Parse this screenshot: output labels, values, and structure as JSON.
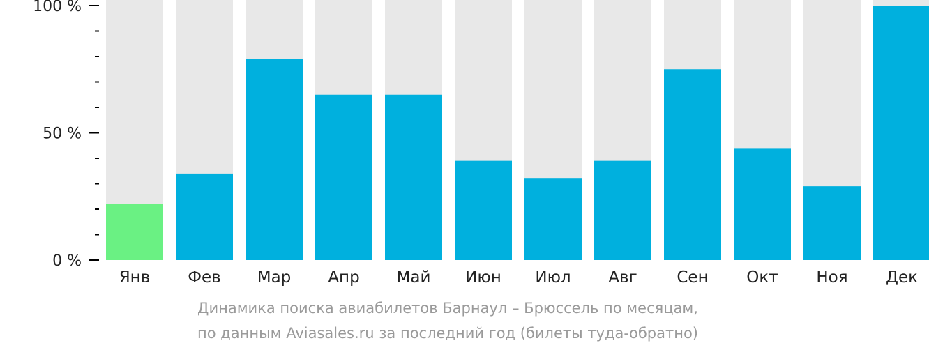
{
  "chart_data": {
    "type": "bar",
    "categories": [
      "Янв",
      "Фев",
      "Мар",
      "Апр",
      "Май",
      "Июн",
      "Июл",
      "Авг",
      "Сен",
      "Окт",
      "Ноя",
      "Дек"
    ],
    "values": [
      22,
      34,
      79,
      65,
      65,
      39,
      32,
      39,
      75,
      44,
      29,
      100
    ],
    "ylim": [
      0,
      100
    ],
    "yticks": [
      "0 %",
      "50 %",
      "100 %"
    ],
    "colors": {
      "bar": "#00b0de",
      "highlight": "#6af183",
      "background_bar": "#e8e8e8",
      "axis": "#000000"
    },
    "highlight_index": 0
  },
  "caption": {
    "line1": "Динамика поиска авиабилетов Барнаул – Брюссель по месяцам,",
    "line2": "по данным Aviasales.ru за последний год (билеты туда-обратно)"
  }
}
